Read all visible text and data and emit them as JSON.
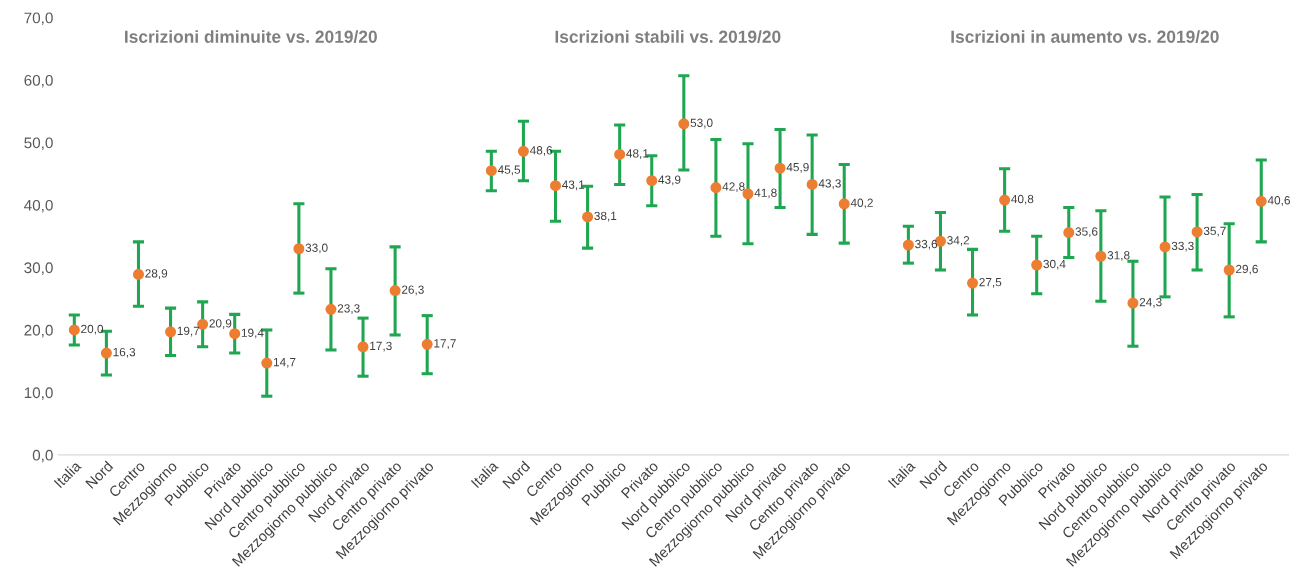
{
  "chart_data": {
    "type": "scatter",
    "categories": [
      "Italia",
      "Nord",
      "Centro",
      "Mezzogiorno",
      "Pubblico",
      "Privato",
      "Nord pubblico",
      "Centro pubblico",
      "Mezzogiorno pubblico",
      "Nord privato",
      "Centro privato",
      "Mezzogiorno privato",
      null,
      "Italia",
      "Nord",
      "Centro",
      "Mezzogiorno",
      "Pubblico",
      "Privato",
      "Nord pubblico",
      "Centro pubblico",
      "Mezzogiorno pubblico",
      "Nord privato",
      "Centro privato",
      "Mezzogiorno privato",
      null,
      "Italia",
      "Nord",
      "Centro",
      "Mezzogiorno",
      "Pubblico",
      "Privato",
      "Nord pubblico",
      "Centro pubblico",
      "Mezzogiorno pubblico",
      "Nord privato",
      "Centro privato",
      "Mezzogiorno privato"
    ],
    "series": [
      {
        "color": "#ed7d31",
        "values": [
          20.0,
          16.3,
          28.9,
          19.7,
          20.9,
          19.4,
          14.7,
          33.0,
          23.3,
          17.3,
          26.3,
          17.7,
          null,
          45.5,
          48.6,
          43.1,
          38.1,
          48.1,
          43.9,
          53.0,
          42.8,
          41.8,
          45.9,
          43.3,
          40.2,
          null,
          33.6,
          34.2,
          27.5,
          40.8,
          30.4,
          35.6,
          31.8,
          24.3,
          33.3,
          35.7,
          29.6,
          40.6
        ],
        "value_labels": [
          "20,0",
          "16,3",
          "28,9",
          "19,7",
          "20,9",
          "19,4",
          "14,7",
          "33,0",
          "23,3",
          "17,3",
          "26,3",
          "17,7",
          null,
          "45,5",
          "48,6",
          "43,1",
          "38,1",
          "48,1",
          "43,9",
          "53,0",
          "42,8",
          "41,8",
          "45,9",
          "43,3",
          "40,2",
          null,
          "33,6",
          "34,2",
          "27,5",
          "40,8",
          "30,4",
          "35,6",
          "31,8",
          "24,3",
          "33,3",
          "35,7",
          "29,6",
          "40,6"
        ],
        "errors": [
          [
            17.6,
            22.4
          ],
          [
            12.8,
            19.8
          ],
          [
            23.8,
            34.1
          ],
          [
            15.9,
            23.5
          ],
          [
            17.3,
            24.5
          ],
          [
            16.3,
            22.5
          ],
          [
            9.4,
            20.0
          ],
          [
            25.9,
            40.2
          ],
          [
            16.8,
            29.8
          ],
          [
            12.6,
            21.9
          ],
          [
            19.2,
            33.3
          ],
          [
            13.0,
            22.3
          ],
          null,
          [
            42.3,
            48.6
          ],
          [
            43.9,
            53.4
          ],
          [
            37.4,
            48.6
          ],
          [
            33.1,
            43.0
          ],
          [
            43.3,
            52.8
          ],
          [
            39.9,
            47.9
          ],
          [
            45.6,
            60.7
          ],
          [
            35.0,
            50.5
          ],
          [
            33.8,
            49.8
          ],
          [
            39.6,
            52.1
          ],
          [
            35.3,
            51.2
          ],
          [
            33.9,
            46.5
          ],
          null,
          [
            30.7,
            36.6
          ],
          [
            29.6,
            38.8
          ],
          [
            22.4,
            32.9
          ],
          [
            35.8,
            45.8
          ],
          [
            25.8,
            35.0
          ],
          [
            31.6,
            39.6
          ],
          [
            24.6,
            39.1
          ],
          [
            17.4,
            31.0
          ],
          [
            25.3,
            41.3
          ],
          [
            29.6,
            41.7
          ],
          [
            22.1,
            37.0
          ],
          [
            34.1,
            47.2
          ]
        ]
      }
    ],
    "annotations": [
      "Iscrizioni diminuite vs. 2019/20",
      "Iscrizioni stabili vs. 2019/20",
      "Iscrizioni in aumento vs. 2019/20"
    ],
    "ylim": [
      0,
      70
    ],
    "yticks": [
      {
        "value": 0,
        "label": "0,0"
      },
      {
        "value": 10,
        "label": "10,0"
      },
      {
        "value": 20,
        "label": "20,0"
      },
      {
        "value": 30,
        "label": "30,0"
      },
      {
        "value": 40,
        "label": "40,0"
      },
      {
        "value": 50,
        "label": "50,0"
      },
      {
        "value": 60,
        "label": "60,0"
      },
      {
        "value": 70,
        "label": "70,0"
      }
    ],
    "marker": "circle",
    "grid": false,
    "legend": false
  }
}
